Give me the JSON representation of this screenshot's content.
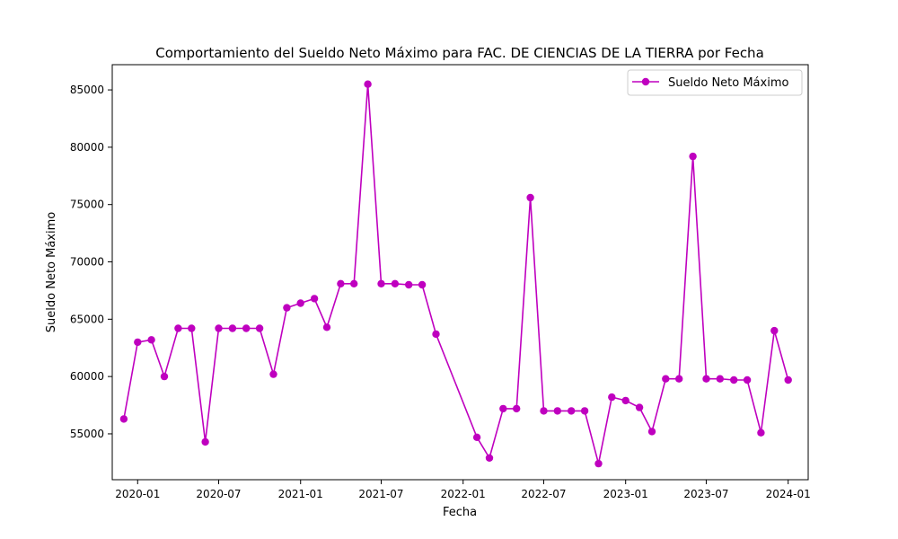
{
  "chart_data": {
    "type": "line",
    "title": "Comportamiento del Sueldo Neto Máximo para FAC. DE CIENCIAS DE LA TIERRA por Fecha",
    "xlabel": "Fecha",
    "ylabel": "Sueldo Neto Máximo",
    "xlim": [
      "2019-11-05",
      "2024-02-15"
    ],
    "ylim": [
      51000,
      87200
    ],
    "x_ticks": [
      "2020-01",
      "2020-07",
      "2021-01",
      "2021-07",
      "2022-01",
      "2022-07",
      "2023-01",
      "2023-07",
      "2024-01"
    ],
    "y_ticks": [
      55000,
      60000,
      65000,
      70000,
      75000,
      80000,
      85000
    ],
    "grid": false,
    "legend_position": "top-right",
    "color": "#bf00bf",
    "series": [
      {
        "name": "Sueldo Neto Máximo",
        "x": [
          "2019-12-01",
          "2020-01-01",
          "2020-02-01",
          "2020-03-01",
          "2020-04-01",
          "2020-05-01",
          "2020-06-01",
          "2020-07-01",
          "2020-08-01",
          "2020-09-01",
          "2020-10-01",
          "2020-11-01",
          "2020-12-01",
          "2021-01-01",
          "2021-02-01",
          "2021-03-01",
          "2021-04-01",
          "2021-05-01",
          "2021-06-01",
          "2021-07-01",
          "2021-08-01",
          "2021-09-01",
          "2021-10-01",
          "2021-11-01",
          "2022-02-01",
          "2022-03-01",
          "2022-04-01",
          "2022-05-01",
          "2022-06-01",
          "2022-07-01",
          "2022-08-01",
          "2022-09-01",
          "2022-10-01",
          "2022-11-01",
          "2022-12-01",
          "2023-01-01",
          "2023-02-01",
          "2023-03-01",
          "2023-04-01",
          "2023-05-01",
          "2023-06-01",
          "2023-07-01",
          "2023-08-01",
          "2023-09-01",
          "2023-10-01",
          "2023-11-01",
          "2023-12-01",
          "2024-01-01"
        ],
        "values": [
          56300,
          63000,
          63200,
          60000,
          64200,
          64200,
          54300,
          64200,
          64200,
          64200,
          64200,
          60200,
          66000,
          66400,
          66800,
          64300,
          68100,
          68100,
          85500,
          68100,
          68100,
          68000,
          68000,
          63700,
          54700,
          52900,
          57200,
          57200,
          75600,
          57000,
          57000,
          57000,
          57000,
          52400,
          58200,
          57900,
          57300,
          55200,
          59800,
          59800,
          79200,
          59800,
          59800,
          59700,
          59700,
          55100,
          64000,
          59700
        ]
      }
    ]
  }
}
